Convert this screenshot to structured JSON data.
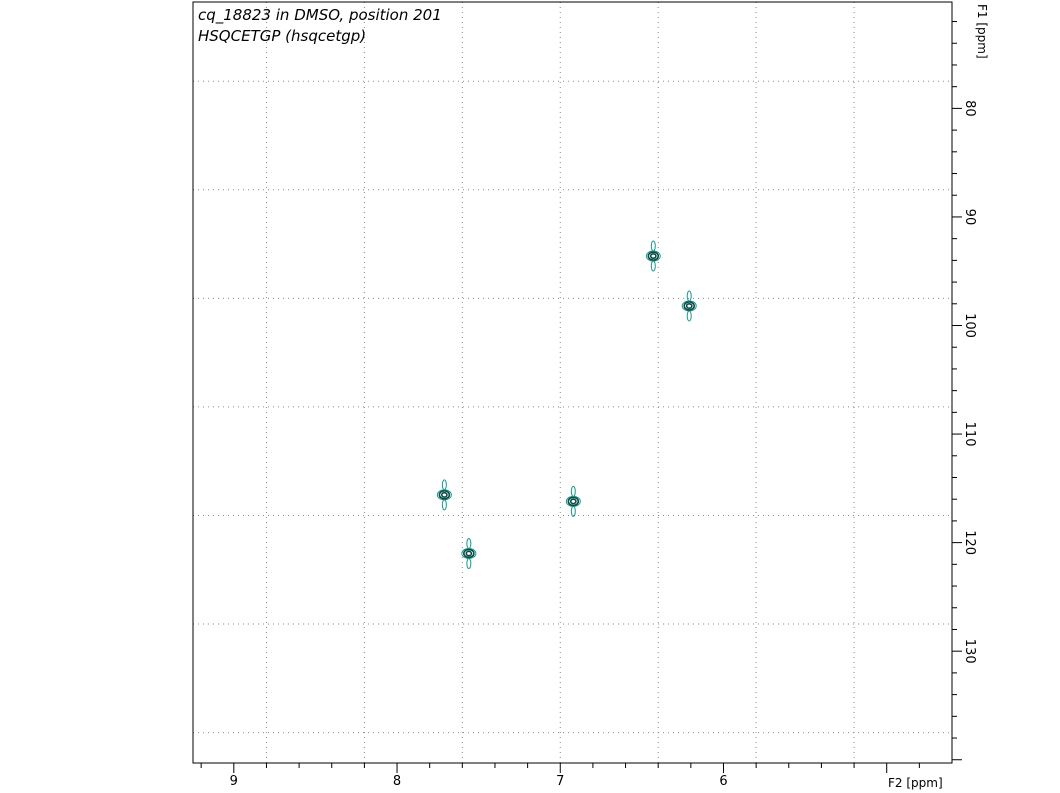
{
  "chart_data": {
    "type": "contour",
    "title_lines": [
      "cq_18823 in DMSO, position 201",
      "HSQCETGP (hsqcetgp)"
    ],
    "xlabel": "F2 [ppm]",
    "ylabel": "F1 [ppm]",
    "x_range": [
      9.25,
      4.6
    ],
    "y_range": [
      70.2,
      140.3
    ],
    "x_ticks": [
      9,
      8,
      7,
      6
    ],
    "y_ticks": [
      80,
      90,
      100,
      110,
      120,
      130
    ],
    "x_grid": [
      8.8,
      8.2,
      7.6,
      7.0,
      6.4,
      5.8,
      5.2
    ],
    "y_grid": [
      77.5,
      87.5,
      97.5,
      107.5,
      117.5,
      127.5,
      137.5
    ],
    "grid": true,
    "peaks": [
      {
        "x": 6.43,
        "y": 93.6
      },
      {
        "x": 6.21,
        "y": 98.2
      },
      {
        "x": 7.71,
        "y": 115.6
      },
      {
        "x": 7.56,
        "y": 121.0
      },
      {
        "x": 6.92,
        "y": 116.2
      }
    ],
    "colors": {
      "contour": "#0b4a47",
      "contour_light": "#169a8a",
      "title": "#1a8a78",
      "axis": "#000000",
      "grid": "#8a8a8a"
    }
  }
}
